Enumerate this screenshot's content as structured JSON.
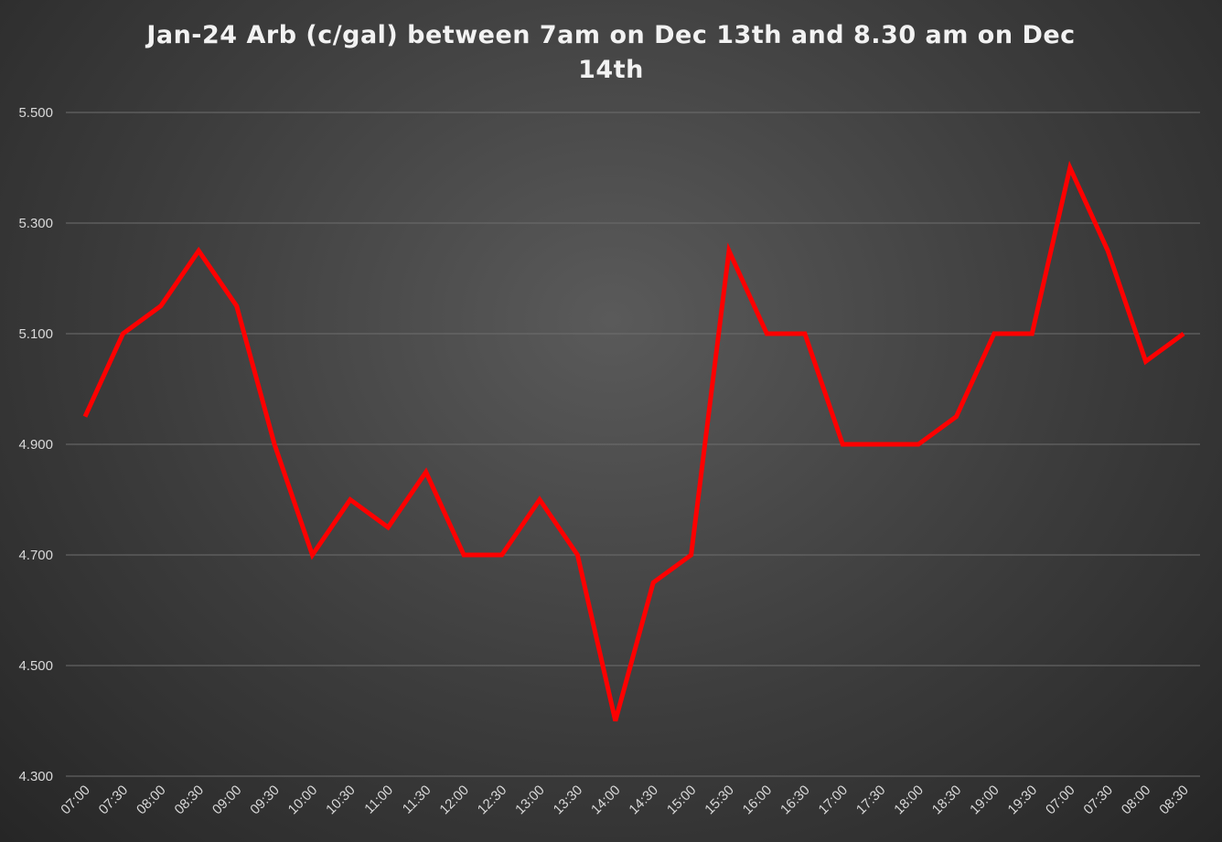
{
  "chart_data": {
    "type": "line",
    "title_lines": [
      "Jan-24 Arb (c/gal) between 7am on Dec 13th and 8.30 am on Dec",
      "14th"
    ],
    "xlabel": "",
    "ylabel": "",
    "ylim": [
      4.3,
      5.5
    ],
    "yticks": [
      "4.300",
      "4.500",
      "4.700",
      "4.900",
      "5.100",
      "5.300",
      "5.500"
    ],
    "categories": [
      "07:00",
      "07:30",
      "08:00",
      "08:30",
      "09:00",
      "09:30",
      "10:00",
      "10:30",
      "11:00",
      "11:30",
      "12:00",
      "12:30",
      "13:00",
      "13:30",
      "14:00",
      "14:30",
      "15:00",
      "15:30",
      "16:00",
      "16:30",
      "17:00",
      "17:30",
      "18:00",
      "18:30",
      "19:00",
      "19:30",
      "07:00",
      "07:30",
      "08:00",
      "08:30"
    ],
    "series": [
      {
        "values": [
          4.95,
          5.1,
          5.15,
          5.25,
          5.15,
          4.9,
          4.7,
          4.8,
          4.75,
          4.85,
          4.7,
          4.7,
          4.8,
          4.7,
          4.4,
          4.65,
          4.7,
          5.25,
          5.1,
          5.1,
          4.9,
          4.9,
          4.9,
          4.95,
          5.1,
          5.1,
          5.4,
          5.25,
          5.05,
          5.1
        ],
        "color": "#ff0000"
      }
    ],
    "grid": true,
    "legend": "none"
  }
}
